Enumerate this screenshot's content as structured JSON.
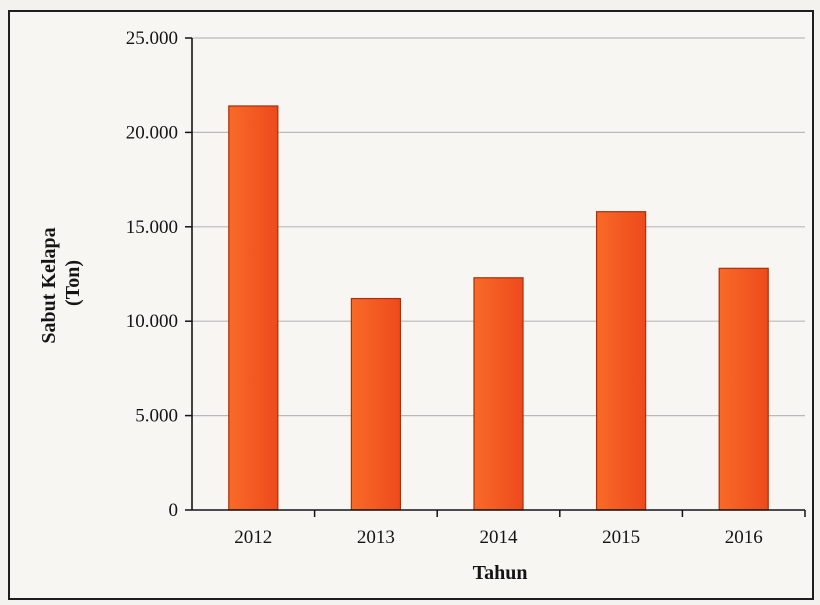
{
  "chart_data": {
    "type": "bar",
    "categories": [
      "2012",
      "2013",
      "2014",
      "2015",
      "2016"
    ],
    "values": [
      21400,
      11200,
      12300,
      15800,
      12800
    ],
    "xlabel": "Tahun",
    "ylabel": [
      "Sabut Kelapa",
      "(Ton)"
    ],
    "ylim": [
      0,
      25000
    ],
    "yticks": [
      0,
      5000,
      10000,
      15000,
      20000,
      25000
    ],
    "ytick_labels": [
      "0",
      "5.000",
      "10.000",
      "15.000",
      "20.000",
      "25.000"
    ],
    "grid": true,
    "legend": "none",
    "colors": {
      "bar_fill_top": "#f86a28",
      "bar_fill_bottom": "#ee4a1c",
      "bar_stroke": "#a8300e",
      "grid": "#b9b9b9",
      "axis": "#141414"
    }
  }
}
